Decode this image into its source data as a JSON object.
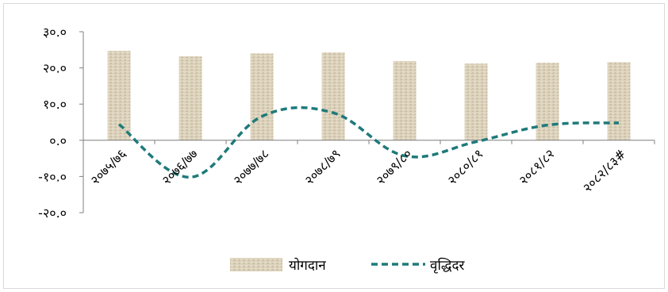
{
  "chart_data": {
    "type": "bar",
    "title": "",
    "xlabel": "",
    "ylabel": "",
    "categories": [
      "२०७५/७६",
      "२०७६/७७",
      "२०७७/७८",
      "२०७८/७९",
      "२०७९/८०",
      "२०८०/८१",
      "२०८१/८२",
      "२०८२/८३#"
    ],
    "series": [
      {
        "name": "योगदान",
        "type": "bar",
        "color": "#d9cfb8",
        "values": [
          24.7,
          23.2,
          24.0,
          24.3,
          21.9,
          21.2,
          21.4,
          21.6
        ]
      },
      {
        "name": "वृद्धिदर",
        "type": "line",
        "style": "dashed-smooth",
        "color": "#1f7a7a",
        "values": [
          4.4,
          -10.2,
          6.6,
          7.6,
          -4.3,
          -0.4,
          4.2,
          4.8
        ]
      }
    ],
    "y_ticks": [
      "३०.०",
      "२०.०",
      "१०.०",
      "०.०",
      "-१०.०",
      "-२०.०"
    ],
    "ylim": [
      -20,
      30
    ],
    "grid": false,
    "legend": "bottom"
  }
}
